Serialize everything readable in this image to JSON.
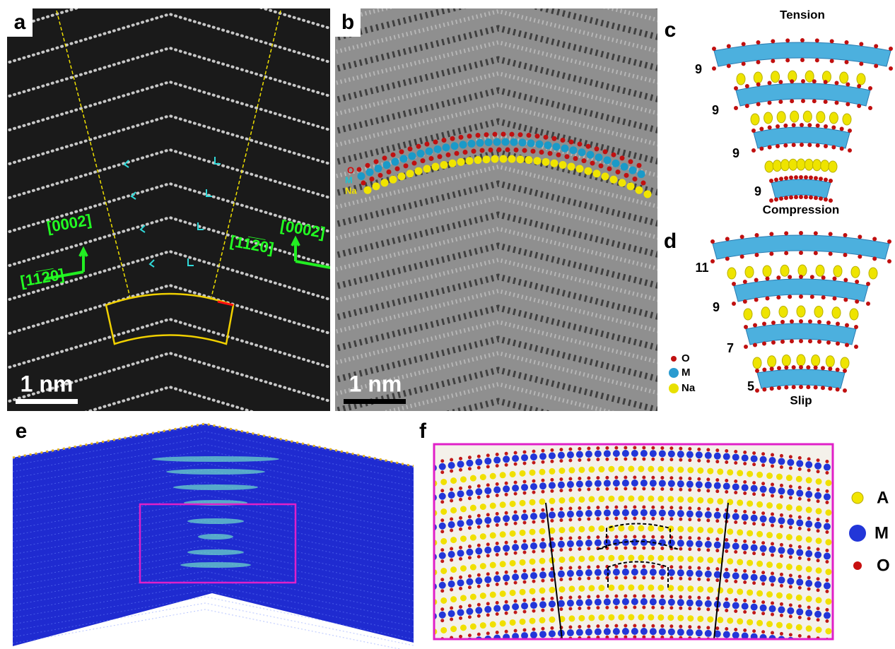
{
  "panels": {
    "a": {
      "label": "a",
      "direction_left_top": "[0002]",
      "direction_left_side": "[11̅2̅0]",
      "direction_right_top": "[0002]",
      "direction_right_side": "[11̅2̅0]",
      "scale_bar": "1 nm"
    },
    "b": {
      "label": "b",
      "atom_labels": [
        "O",
        "M",
        "Na"
      ],
      "scale_bar": "1 nm"
    },
    "c": {
      "label": "c",
      "top": "Tension",
      "bottom": "Compression",
      "layer_counts": [
        9,
        9,
        9,
        9
      ]
    },
    "d": {
      "label": "d",
      "bottom": "Slip",
      "layer_counts": [
        11,
        9,
        7,
        5
      ]
    },
    "legend_cd": [
      "O",
      "M",
      "Na"
    ],
    "e": {
      "label": "e"
    },
    "f": {
      "label": "f",
      "legend": [
        "A",
        "M",
        "O"
      ]
    }
  }
}
